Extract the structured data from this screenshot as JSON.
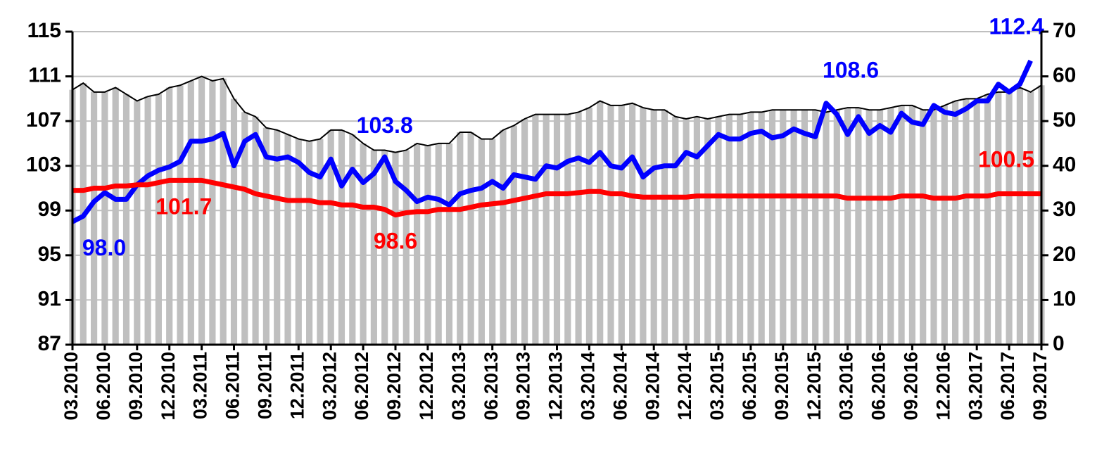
{
  "chart_data": {
    "type": "combo",
    "categories": [
      "03.2010",
      null,
      null,
      "06.2010",
      null,
      null,
      "09.2010",
      null,
      null,
      "12.2010",
      null,
      null,
      "03.2011",
      null,
      null,
      "06.2011",
      null,
      null,
      "09.2011",
      null,
      null,
      "12.2011",
      null,
      null,
      "03.2012",
      null,
      null,
      "06.2012",
      null,
      null,
      "09.2012",
      null,
      null,
      "12.2012",
      null,
      null,
      "03.2013",
      null,
      null,
      "06.2013",
      null,
      null,
      "09.2013",
      null,
      null,
      "12.2013",
      null,
      null,
      "03.2014",
      null,
      null,
      "06.2014",
      null,
      null,
      "09.2014",
      null,
      null,
      "12.2014",
      null,
      null,
      "03.2015",
      null,
      null,
      "06.2015",
      null,
      null,
      "09.2015",
      null,
      null,
      "12.2015",
      null,
      null,
      "03.2016",
      null,
      null,
      "06.2016",
      null,
      null,
      "09.2016",
      null,
      null,
      "12.2016",
      null,
      null,
      "03.2017",
      null,
      null,
      "06.2017",
      null,
      null,
      "09.2017"
    ],
    "ylim": [
      87,
      115
    ],
    "yticks": [
      87,
      91,
      95,
      99,
      103,
      107,
      111,
      115
    ],
    "y2lim": [
      0,
      70
    ],
    "y2ticks": [
      0,
      10,
      20,
      30,
      40,
      50,
      60,
      70
    ],
    "grid": true,
    "series": [
      {
        "type": "bar",
        "axis": "y2",
        "color": "#bfbfbf",
        "line_color": "#000000",
        "values": [
          57,
          58.5,
          56.5,
          56.5,
          57.5,
          56,
          54.5,
          55.5,
          56,
          57.5,
          58,
          59,
          60,
          59,
          59.5,
          55,
          52,
          51,
          48.5,
          48,
          47,
          46,
          45.5,
          46,
          48,
          48,
          47,
          45,
          43.5,
          43.5,
          43,
          43.5,
          45,
          44.5,
          45,
          45,
          47.5,
          47.5,
          46,
          46,
          48,
          49,
          50.5,
          51.5,
          51.5,
          51.5,
          51.5,
          52,
          53,
          54.5,
          53.5,
          53.5,
          54,
          53,
          52.5,
          52.5,
          51,
          50.5,
          51,
          50.5,
          51,
          51.5,
          51.5,
          52,
          52,
          52.5,
          52.5,
          52.5,
          52.5,
          52.5,
          52,
          52.5,
          53,
          53,
          52.5,
          52.5,
          53,
          53.5,
          53.5,
          52.5,
          52.5,
          53.5,
          54.5,
          55,
          55,
          56,
          56.5,
          56.5,
          57.5,
          56.5,
          58
        ]
      },
      {
        "type": "line",
        "color": "#0000ff",
        "values": [
          98.0,
          98.5,
          99.8,
          100.6,
          100.0,
          100.0,
          101.3,
          102.1,
          102.6,
          102.9,
          103.4,
          105.2,
          105.2,
          105.4,
          105.9,
          103.0,
          105.2,
          105.8,
          103.8,
          103.6,
          103.8,
          103.3,
          102.4,
          102.0,
          103.6,
          101.2,
          102.7,
          101.5,
          102.3,
          103.8,
          101.6,
          100.8,
          99.8,
          100.2,
          100.0,
          99.5,
          100.5,
          100.8,
          101.0,
          101.6,
          101.0,
          102.2,
          102.0,
          101.8,
          103.0,
          102.8,
          103.4,
          103.7,
          103.3,
          104.2,
          103.0,
          102.8,
          103.8,
          102.0,
          102.8,
          103.0,
          103.0,
          104.2,
          103.8,
          104.8,
          105.8,
          105.4,
          105.4,
          105.9,
          106.1,
          105.5,
          105.7,
          106.3,
          105.9,
          105.6,
          108.6,
          107.6,
          105.8,
          107.4,
          105.9,
          106.6,
          106.0,
          107.7,
          106.9,
          106.7,
          108.4,
          107.8,
          107.6,
          108.1,
          108.8,
          108.8,
          110.3,
          109.6,
          110.3,
          112.4,
          null
        ],
        "value_labels": [
          "98.0",
          null,
          null,
          null,
          null,
          null,
          null,
          null,
          null,
          null,
          null,
          null,
          null,
          null,
          null,
          null,
          null,
          null,
          null,
          null,
          null,
          null,
          null,
          null,
          null,
          null,
          null,
          null,
          null,
          "103.8",
          null,
          null,
          null,
          null,
          null,
          null,
          null,
          null,
          null,
          null,
          null,
          null,
          null,
          null,
          null,
          null,
          null,
          null,
          null,
          null,
          null,
          null,
          null,
          null,
          null,
          null,
          null,
          null,
          null,
          null,
          null,
          null,
          null,
          null,
          null,
          null,
          null,
          null,
          null,
          null,
          "108.6",
          null,
          null,
          null,
          null,
          null,
          null,
          null,
          null,
          null,
          null,
          null,
          null,
          null,
          null,
          null,
          null,
          null,
          null,
          "112.4",
          null
        ]
      },
      {
        "type": "line",
        "color": "#ff0000",
        "values": [
          100.8,
          100.8,
          101.0,
          101.0,
          101.2,
          101.2,
          101.3,
          101.3,
          101.5,
          101.7,
          101.7,
          101.7,
          101.7,
          101.5,
          101.3,
          101.1,
          100.9,
          100.5,
          100.3,
          100.1,
          99.9,
          99.9,
          99.9,
          99.7,
          99.7,
          99.5,
          99.5,
          99.3,
          99.3,
          99.1,
          98.6,
          98.8,
          98.9,
          98.9,
          99.1,
          99.1,
          99.1,
          99.3,
          99.5,
          99.6,
          99.7,
          99.9,
          100.1,
          100.3,
          100.5,
          100.5,
          100.5,
          100.6,
          100.7,
          100.7,
          100.5,
          100.5,
          100.3,
          100.2,
          100.2,
          100.2,
          100.2,
          100.2,
          100.3,
          100.3,
          100.3,
          100.3,
          100.3,
          100.3,
          100.3,
          100.3,
          100.3,
          100.3,
          100.3,
          100.3,
          100.3,
          100.3,
          100.1,
          100.1,
          100.1,
          100.1,
          100.1,
          100.3,
          100.3,
          100.3,
          100.1,
          100.1,
          100.1,
          100.3,
          100.3,
          100.3,
          100.5,
          100.5,
          100.5,
          100.5,
          100.5
        ],
        "value_labels": [
          null,
          null,
          null,
          null,
          null,
          null,
          null,
          null,
          null,
          null,
          null,
          "101.7",
          null,
          null,
          null,
          null,
          null,
          null,
          null,
          null,
          null,
          null,
          null,
          null,
          null,
          null,
          null,
          null,
          null,
          null,
          "98.6",
          null,
          null,
          null,
          null,
          null,
          null,
          null,
          null,
          null,
          null,
          null,
          null,
          null,
          null,
          null,
          null,
          null,
          null,
          null,
          null,
          null,
          null,
          null,
          null,
          null,
          null,
          null,
          null,
          null,
          null,
          null,
          null,
          null,
          null,
          null,
          null,
          null,
          null,
          null,
          null,
          null,
          null,
          null,
          null,
          null,
          null,
          null,
          null,
          null,
          null,
          null,
          null,
          null,
          null,
          null,
          null,
          null,
          null,
          null,
          "100.5"
        ]
      }
    ]
  }
}
